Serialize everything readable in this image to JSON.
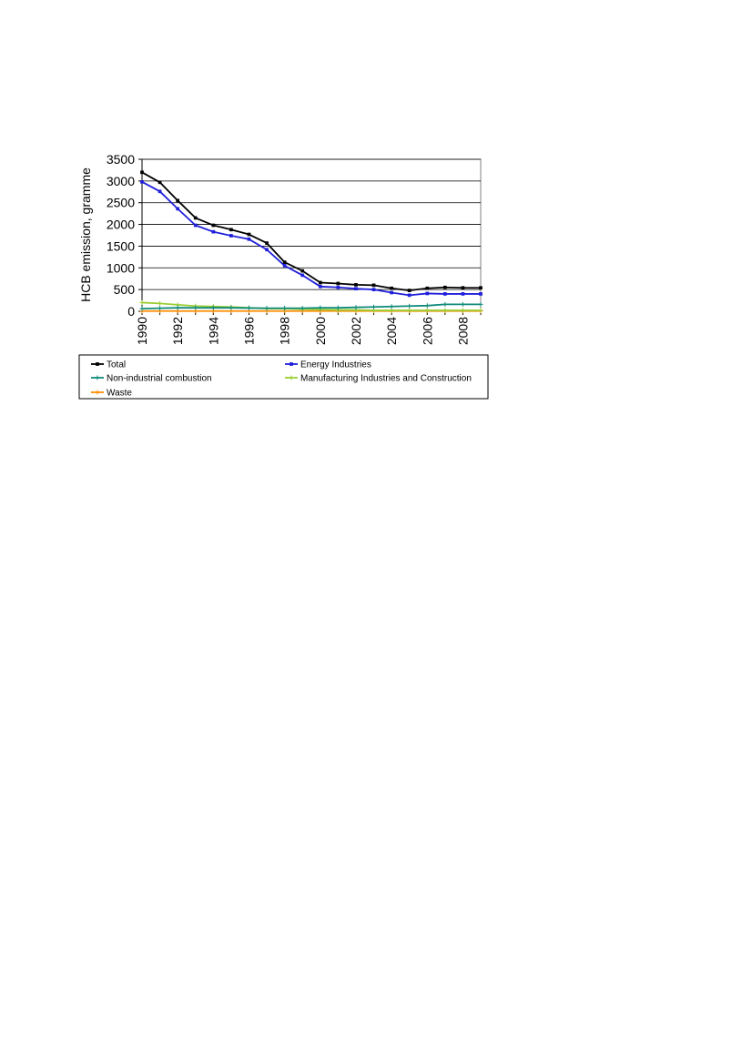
{
  "chart_data": {
    "type": "line",
    "title": "",
    "xlabel": "",
    "ylabel": "HCB emission, gramme",
    "ylim": [
      0,
      3500
    ],
    "yticks": [
      0,
      500,
      1000,
      1500,
      2000,
      2500,
      3000,
      3500
    ],
    "x": [
      1990,
      1991,
      1992,
      1993,
      1994,
      1995,
      1996,
      1997,
      1998,
      1999,
      2000,
      2001,
      2002,
      2003,
      2004,
      2005,
      2006,
      2007,
      2008,
      2009
    ],
    "xtick_labels": [
      "1990",
      "1992",
      "1994",
      "1996",
      "1998",
      "2000",
      "2002",
      "2004",
      "2006",
      "2008"
    ],
    "grid": "horizontal",
    "legend_position": "bottom",
    "series": [
      {
        "name": "Total",
        "color": "#000000",
        "marker": "square",
        "values": [
          3200,
          2970,
          2550,
          2150,
          1980,
          1880,
          1770,
          1570,
          1130,
          930,
          660,
          640,
          610,
          600,
          530,
          480,
          530,
          550,
          540,
          540
        ]
      },
      {
        "name": "Energy Industries",
        "color": "#1f1fdb",
        "marker": "square",
        "values": [
          2980,
          2760,
          2360,
          1980,
          1830,
          1740,
          1660,
          1420,
          1050,
          830,
          570,
          550,
          520,
          500,
          430,
          370,
          410,
          400,
          400,
          400
        ]
      },
      {
        "name": "Non-industrial combustion",
        "color": "#0f8a7a",
        "marker": "plus",
        "values": [
          60,
          70,
          80,
          80,
          80,
          80,
          75,
          70,
          70,
          70,
          80,
          80,
          90,
          100,
          110,
          120,
          130,
          160,
          160,
          160
        ]
      },
      {
        "name": "Manufacturing Industries and Construction",
        "color": "#9acd32",
        "marker": "plus",
        "values": [
          200,
          180,
          150,
          120,
          110,
          100,
          80,
          60,
          60,
          50,
          40,
          30,
          30,
          20,
          20,
          20,
          20,
          20,
          20,
          20
        ]
      },
      {
        "name": "Waste",
        "color": "#ff8c00",
        "marker": "plus",
        "values": [
          5,
          5,
          5,
          5,
          5,
          5,
          5,
          5,
          5,
          5,
          5,
          5,
          5,
          5,
          5,
          5,
          5,
          5,
          5,
          5
        ]
      }
    ]
  }
}
